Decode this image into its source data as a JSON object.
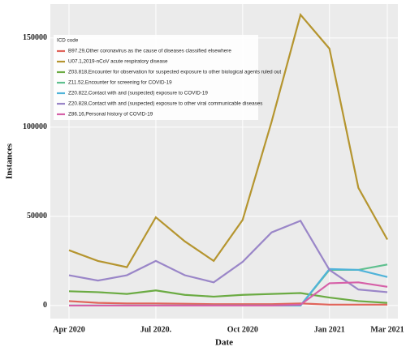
{
  "chart_data": {
    "type": "line",
    "x_label": "Date",
    "y_label": "Instances",
    "legend_title": "ICD code",
    "legend": "top-left",
    "grid": true,
    "categories": [
      "Apr 2020",
      null,
      null,
      "Jul 2020.",
      null,
      null,
      "Oct 2020",
      null,
      null,
      "Jan 2021",
      null,
      "Mar 2021"
    ],
    "ylim": [
      -7300,
      169000
    ],
    "yticks": [
      0,
      50000,
      100000,
      150000
    ],
    "series": [
      {
        "name": "B97.29,Other coronavirus as the cause of diseases classified elsewhere",
        "color": "#e0645a",
        "values": [
          2500,
          1500,
          1200,
          1200,
          1000,
          800,
          800,
          800,
          1200,
          500,
          500,
          500
        ]
      },
      {
        "name": "U07.1,2019-nCoV acute respiratory disease",
        "color": "#b5952f",
        "values": [
          31000,
          25000,
          21500,
          49500,
          36000,
          25000,
          48000,
          103000,
          163000,
          144000,
          66000,
          37000
        ]
      },
      {
        "name": "Z03.818,Encounter for observation for suspected exposure to other biological agents ruled out",
        "color": "#6bab43",
        "values": [
          8000,
          7500,
          6500,
          8500,
          6000,
          5000,
          6000,
          6500,
          7000,
          4500,
          2500,
          1500
        ]
      },
      {
        "name": "Z11.52,Encounter for screening for COVID-19",
        "color": "#5fc08f",
        "values": [
          0,
          0,
          0,
          0,
          0,
          0,
          0,
          0,
          0,
          20000,
          20000,
          23000
        ]
      },
      {
        "name": "Z20.822,Contact with and (suspected) exposure to COVID-19",
        "color": "#4fb3d9",
        "values": [
          0,
          0,
          0,
          0,
          0,
          0,
          0,
          0,
          0,
          20500,
          20000,
          16000
        ]
      },
      {
        "name": "Z20.828,Contact with and (suspected) exposure to other viral communicable diseases",
        "color": "#9a86c8",
        "values": [
          17000,
          14000,
          17000,
          25000,
          17000,
          13000,
          24500,
          41000,
          47500,
          20000,
          9000,
          7500
        ]
      },
      {
        "name": "Z86.16,Personal history of COVID-19",
        "color": "#d660a8",
        "values": [
          0,
          0,
          0,
          0,
          0,
          0,
          0,
          0,
          500,
          12500,
          13000,
          10500
        ]
      }
    ]
  }
}
